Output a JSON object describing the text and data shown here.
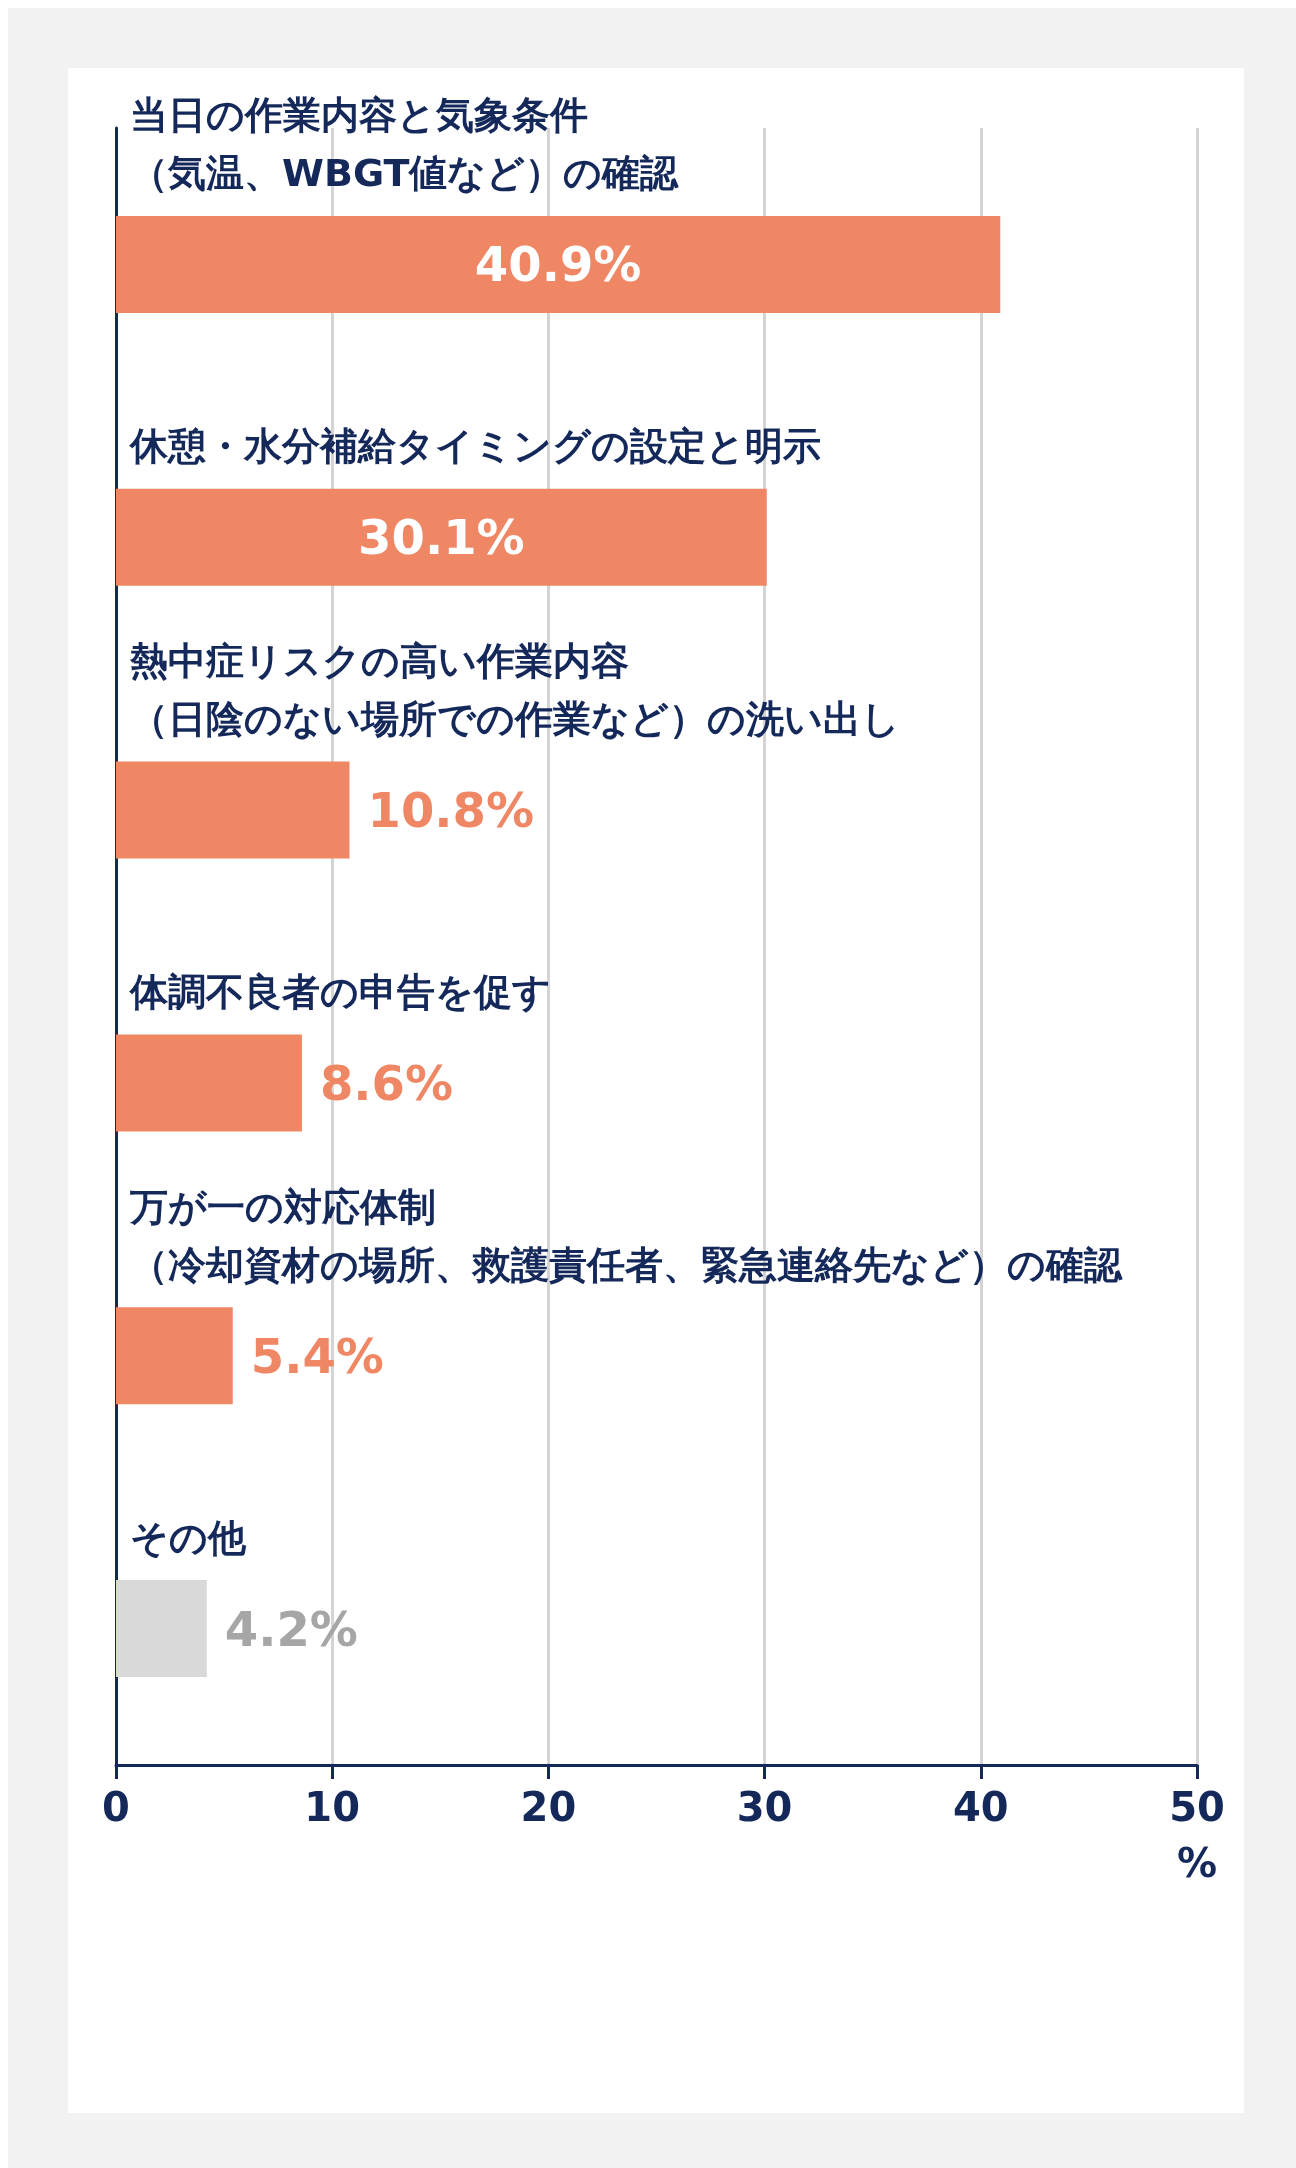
{
  "chart_data": {
    "type": "bar",
    "orientation": "horizontal",
    "xlabel": "%",
    "categories": [
      "当日の作業内容と気象条件（気温、WBGT値など）の確認",
      "休憩・水分補給タイミングの設定と明示",
      "熱中症リスクの高い作業内容（日陰のない場所での作業など）の洗い出し",
      "体調不良者の申告を促す",
      "万が一の対応体制（冷却資材の場所、救護責任者、緊急連絡先など）の確認",
      "その他"
    ],
    "values": [
      40.9,
      30.1,
      10.8,
      8.6,
      5.4,
      4.2
    ],
    "value_labels": [
      "40.9%",
      "30.1%",
      "10.8%",
      "8.6%",
      "5.4%",
      "4.2%"
    ],
    "colors": [
      "#ef8765",
      "#ef8765",
      "#ef8765",
      "#ef8765",
      "#ef8765",
      "#d9d9d9"
    ],
    "xlim": [
      0,
      50
    ],
    "xticks": [
      0,
      10,
      20,
      30,
      40,
      50
    ],
    "grid": "x"
  }
}
